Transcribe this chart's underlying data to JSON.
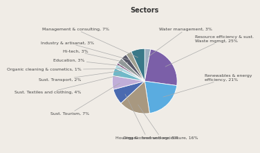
{
  "title": "Sectors",
  "slices": [
    {
      "label": "Water management, 3%",
      "value": 3,
      "color": "#9eafc0"
    },
    {
      "label": "Resource efficiency & sust.\nWaste mgmgt, 25%",
      "value": 25,
      "color": "#7b5fa8"
    },
    {
      "label": "Renewables & energy\nefficiency, 21%",
      "value": 21,
      "color": "#5aace0"
    },
    {
      "label": "Organic food and agriculture, 16%",
      "value": 16,
      "color": "#a89880"
    },
    {
      "label": "Housing & constructions, 8%",
      "value": 8,
      "color": "#4a6ab0"
    },
    {
      "label": "Sust. Tourism, 7%",
      "value": 7,
      "color": "#c0aed8"
    },
    {
      "label": "Sust. Textiles and clothing, 4%",
      "value": 4,
      "color": "#70b8c8"
    },
    {
      "label": "Sust. Transport, 2%",
      "value": 2,
      "color": "#b0d8e0"
    },
    {
      "label": "Organic cleaning & cosmetics, 1%",
      "value": 1,
      "color": "#7a4878"
    },
    {
      "label": "Education, 3%",
      "value": 3,
      "color": "#909898"
    },
    {
      "label": "Hi-tech, 3%",
      "value": 3,
      "color": "#585868"
    },
    {
      "label": "Industry & artisanat, 3%",
      "value": 3,
      "color": "#a0a090"
    },
    {
      "label": "Management & consulting, 7%",
      "value": 7,
      "color": "#3a7888"
    }
  ],
  "title_fontsize": 7,
  "label_fontsize": 4.5,
  "bg_color": "#f0ece6"
}
